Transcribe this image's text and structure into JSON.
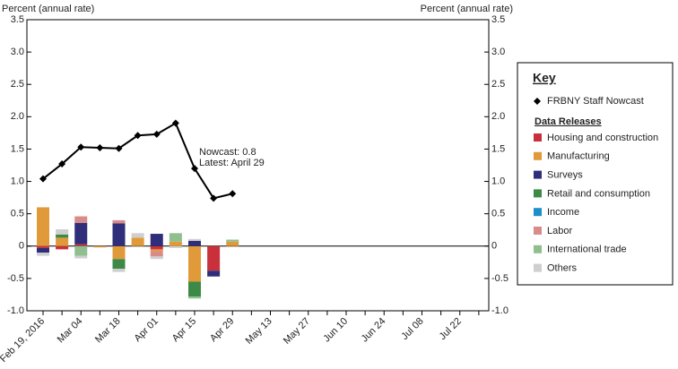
{
  "chart_data": {
    "type": "bar",
    "y_label_left": "Percent (annual rate)",
    "y_label_right": "Percent (annual rate)",
    "categories": [
      "Feb 19, 2016",
      null,
      "Mar 04",
      null,
      "Mar 18",
      null,
      "Apr 01",
      null,
      "Apr 15",
      null,
      "Apr 29",
      null,
      "May 13",
      null,
      "May 27",
      null,
      "Jun 10",
      null,
      "Jun 24",
      null,
      "Jul 08",
      null,
      "Jul 22",
      null
    ],
    "ylim": [
      -1.0,
      3.5
    ],
    "yticks": [
      {
        "value": -1.0,
        "label": "-1.0"
      },
      -0.5,
      0,
      0.5,
      {
        "value": 1.0,
        "label": "1.0"
      },
      1.5,
      {
        "value": 2.0,
        "label": "2.0"
      },
      2.5,
      {
        "value": 3.0,
        "label": "3.0"
      },
      3.5
    ],
    "y2lim": [
      -1.0,
      3.5
    ],
    "y2ticks": [
      {
        "value": -1.0,
        "label": "-1.0"
      },
      -0.5,
      0,
      0.5,
      {
        "value": 1.0,
        "label": "1.0"
      },
      1.5,
      {
        "value": 2.0,
        "label": "2.0"
      },
      2.5,
      {
        "value": 3.0,
        "label": "3.0"
      },
      3.5
    ],
    "legend_title": "Key",
    "legend_group": "Data Releases",
    "legend_position": "right",
    "line": {
      "name": "FRBNY Staff Nowcast",
      "color": "#000000",
      "values": [
        1.04,
        1.27,
        1.53,
        1.52,
        1.51,
        1.71,
        1.73,
        1.9,
        1.2,
        0.74,
        0.81,
        null,
        null,
        null,
        null,
        null,
        null,
        null,
        null,
        null,
        null,
        null,
        null,
        null
      ]
    },
    "series": [
      {
        "name": "Housing and construction",
        "color": "#c8313b",
        "values": [
          -0.03,
          -0.05,
          0.03,
          null,
          null,
          null,
          -0.05,
          null,
          null,
          -0.38,
          null,
          null,
          null,
          null,
          null,
          null,
          null,
          null,
          null,
          null,
          null,
          null,
          null,
          null
        ]
      },
      {
        "name": "Manufacturing",
        "color": "#e09a3a",
        "values": [
          0.6,
          0.13,
          null,
          -0.02,
          -0.2,
          0.13,
          -0.03,
          0.07,
          -0.55,
          null,
          0.07,
          null,
          null,
          null,
          null,
          null,
          null,
          null,
          null,
          null,
          null,
          null,
          null,
          null
        ]
      },
      {
        "name": "Surveys",
        "color": "#2e2e7a",
        "values": [
          -0.07,
          null,
          0.33,
          null,
          0.35,
          null,
          0.19,
          null,
          0.08,
          -0.09,
          null,
          null,
          null,
          null,
          null,
          null,
          null,
          null,
          null,
          null,
          null,
          null,
          null,
          null
        ]
      },
      {
        "name": "Retail and consumption",
        "color": "#3d8a47",
        "values": [
          null,
          0.05,
          null,
          null,
          -0.15,
          null,
          null,
          null,
          -0.23,
          null,
          null,
          null,
          null,
          null,
          null,
          null,
          null,
          null,
          null,
          null,
          null,
          null,
          null,
          null
        ]
      },
      {
        "name": "Income",
        "color": "#1a8fc9",
        "values": [
          null,
          null,
          null,
          null,
          null,
          null,
          null,
          null,
          null,
          null,
          null,
          null,
          null,
          null,
          null,
          null,
          null,
          null,
          null,
          null,
          null,
          null,
          null,
          null
        ]
      },
      {
        "name": "Labor",
        "color": "#d98b8b",
        "values": [
          null,
          null,
          0.1,
          null,
          0.05,
          null,
          -0.08,
          null,
          null,
          null,
          null,
          null,
          null,
          null,
          null,
          null,
          null,
          null,
          null,
          null,
          null,
          null,
          null,
          null
        ]
      },
      {
        "name": "International trade",
        "color": "#8fbf8f",
        "values": [
          null,
          null,
          -0.15,
          null,
          null,
          null,
          null,
          0.13,
          -0.03,
          null,
          0.03,
          null,
          null,
          null,
          null,
          null,
          null,
          null,
          null,
          null,
          null,
          null,
          null,
          null
        ]
      },
      {
        "name": "Others",
        "color": "#cfcfcf",
        "values": [
          -0.05,
          0.08,
          -0.04,
          null,
          -0.05,
          0.07,
          -0.04,
          -0.03,
          0.03,
          null,
          null,
          null,
          null,
          null,
          null,
          null,
          null,
          null,
          null,
          null,
          null,
          null,
          null,
          null
        ]
      }
    ],
    "annotations": [
      "Nowcast:  0.8",
      "Latest: April 29"
    ]
  }
}
